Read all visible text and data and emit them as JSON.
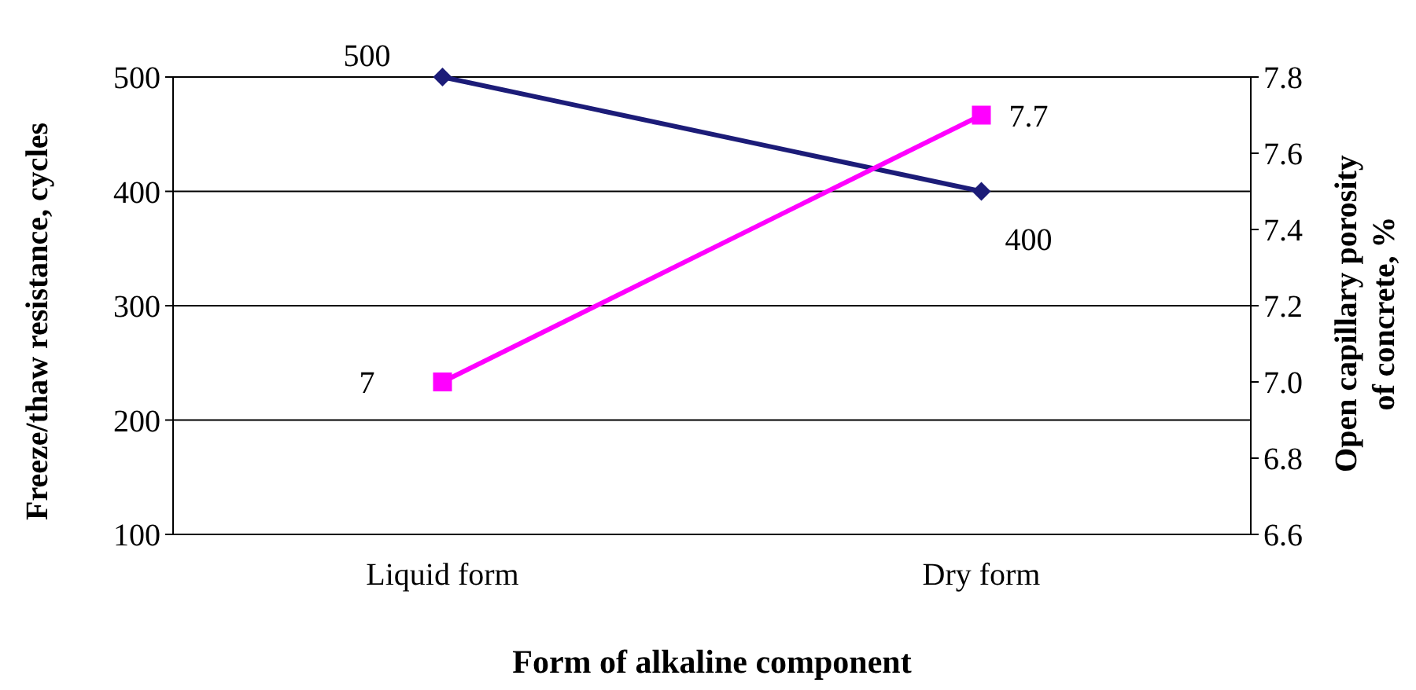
{
  "chart_data": {
    "type": "line",
    "xlabel": "Form of alkaline  component",
    "ylabel": "Freeze/thaw resistance, cycles",
    "y2label": "Open capillary porosity\nof concrete, %",
    "categories": [
      "Liquid form",
      "Dry form"
    ],
    "series": [
      {
        "color": "#1c1c78",
        "values": [
          500,
          400
        ],
        "marker": "diamond",
        "axis": "y"
      },
      {
        "color": "#ff00ff",
        "values": [
          7,
          7.7
        ],
        "marker": "square",
        "axis": "y2"
      }
    ],
    "ylim": [
      100,
      500
    ],
    "yticks": [
      100,
      200,
      300,
      400,
      500
    ],
    "y2lim": [
      6.6,
      7.8
    ],
    "y2ticks": [
      6.6,
      6.8,
      {
        "value": 7,
        "label": "7.0"
      },
      7.2,
      7.4,
      7.6,
      7.8
    ],
    "grid": "y",
    "data_labels": true
  }
}
